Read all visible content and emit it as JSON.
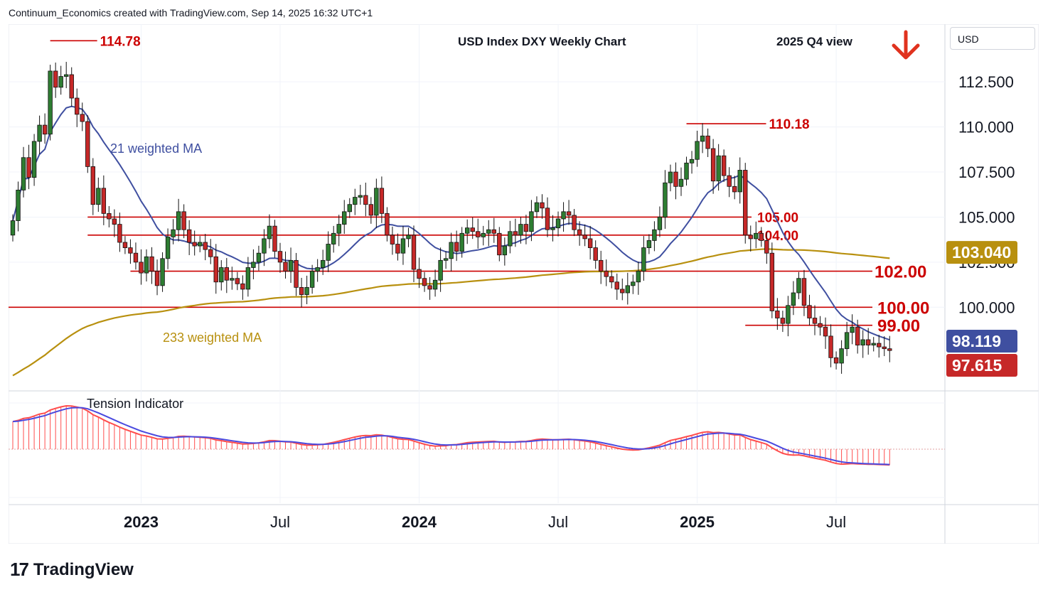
{
  "header": {
    "credit": "Continuum_Economics created with TradingView.com, Sep 14, 2025 16:32 UTC+1"
  },
  "symbol": "USD",
  "footer": {
    "logo_mark": "17",
    "brand": "TradingView"
  },
  "colors": {
    "up": "#2e7d32",
    "down": "#c62828",
    "ma21": "#3f4fa0",
    "ma233": "#b8900f",
    "levels": "#cc0000",
    "tension_red": "#ff4d4d",
    "tension_blue": "#4a4adf"
  },
  "chart_data": [
    {
      "type": "candlestick",
      "title": "USD Index DXY Weekly Chart",
      "subtitle": "2025 Q4 view",
      "outlook": "down-arrow",
      "x_ticks": [
        "2023",
        "Jul",
        "2024",
        "Jul",
        "2025",
        "Jul"
      ],
      "y_ticks": [
        "112.500",
        "110.000",
        "107.500",
        "105.000",
        "102.500",
        "100.000"
      ],
      "ylim": [
        95.4,
        115.7
      ],
      "moving_averages": [
        {
          "label": "21 weighted MA",
          "last": "98.119"
        },
        {
          "label": "233 weighted MA",
          "last": "103.040"
        }
      ],
      "last_price": "97.615",
      "highs_marked": [
        {
          "label": "114.78",
          "value": 114.78
        },
        {
          "label": "110.18",
          "value": 110.18
        }
      ],
      "levels": [
        {
          "label": "105.00",
          "value": 105.0
        },
        {
          "label": "104.00",
          "value": 104.0
        },
        {
          "label": "102.00",
          "value": 102.0
        },
        {
          "label": "100.00",
          "value": 100.0
        },
        {
          "label": "99.00",
          "value": 99.0
        }
      ],
      "closes": [
        104.8,
        106.5,
        108.3,
        107.2,
        109.2,
        110.1,
        109.6,
        113.1,
        112.2,
        112.8,
        112.9,
        111.6,
        110.7,
        110.3,
        107.8,
        105.7,
        106.6,
        105.2,
        104.9,
        104.6,
        103.6,
        103.3,
        103.0,
        102.5,
        101.9,
        102.8,
        102.0,
        101.2,
        102.7,
        103.9,
        104.3,
        105.3,
        104.3,
        103.6,
        103.4,
        103.6,
        103.2,
        102.8,
        101.4,
        102.2,
        101.5,
        101.6,
        101.3,
        101.0,
        102.2,
        102.5,
        103.0,
        103.8,
        104.5,
        103.1,
        102.5,
        102.0,
        102.6,
        101.1,
        100.7,
        101.1,
        102.0,
        102.2,
        102.6,
        103.5,
        104.1,
        104.6,
        105.3,
        105.7,
        106.1,
        106.2,
        105.7,
        105.1,
        106.6,
        105.2,
        104.0,
        103.5,
        103.0,
        103.8,
        104.0,
        102.1,
        101.6,
        101.2,
        101.0,
        101.5,
        102.6,
        102.7,
        103.6,
        103.1,
        104.1,
        104.4,
        104.2,
        103.9,
        104.1,
        104.3,
        104.1,
        102.9,
        103.4,
        104.2,
        104.0,
        104.6,
        104.2,
        105.3,
        105.8,
        105.5,
        104.3,
        104.4,
        104.9,
        105.3,
        105.1,
        104.3,
        104.0,
        103.8,
        103.3,
        102.6,
        102.0,
        101.7,
        101.4,
        101.0,
        100.8,
        101.2,
        101.4,
        102.0,
        103.3,
        103.7,
        104.3,
        105.0,
        106.9,
        107.5,
        106.7,
        107.1,
        108.0,
        108.2,
        109.2,
        109.5,
        108.8,
        107.0,
        108.4,
        107.3,
        106.7,
        106.4,
        107.6,
        104.0,
        103.8,
        104.1,
        103.7,
        103.0,
        99.8,
        99.4,
        99.1,
        100.1,
        100.8,
        101.6,
        100.1,
        99.4,
        99.1,
        98.9,
        98.4,
        97.2,
        96.9,
        97.7,
        98.6,
        98.9,
        97.9,
        98.2,
        97.9,
        98.0,
        97.8,
        97.7,
        97.6
      ],
      "panels": [
        {
          "label": "Tension Indicator"
        }
      ]
    }
  ]
}
